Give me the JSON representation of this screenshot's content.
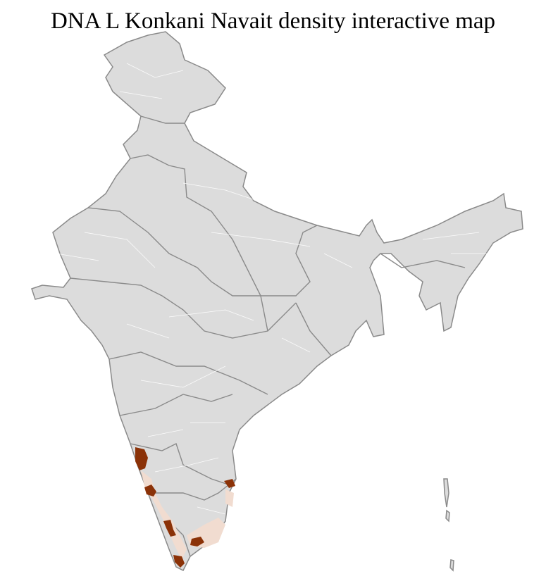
{
  "title": "DNA L Konkani Navait density interactive map",
  "colors": {
    "land": "#dcdcdc",
    "state_border": "#8a8a8a",
    "district_border": "#ffffff",
    "density_high": "#8b3208",
    "density_low": "#f1dcd0"
  },
  "map": {
    "region": "India",
    "boundaries": [
      "state",
      "district"
    ],
    "highlight_levels": [
      "high",
      "low"
    ]
  }
}
